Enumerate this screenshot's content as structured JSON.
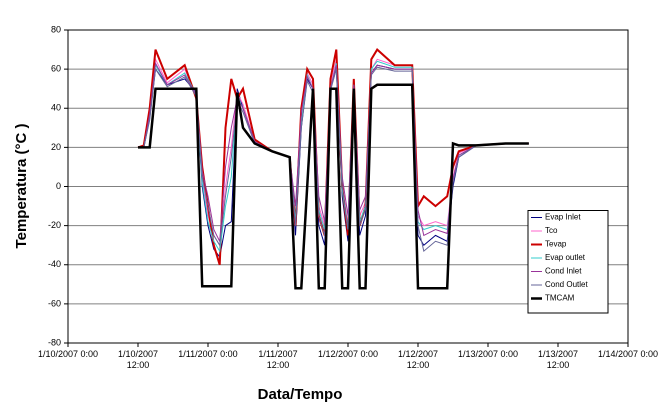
{
  "chart_data": {
    "type": "line",
    "y_label": "Temperatura (°C )",
    "x_label": "Data/Tempo",
    "xlim": [
      "1/10/2007 0:00",
      "1/14/2007 0:00"
    ],
    "xticks": [
      {
        "value": "1/10/2007 0:00",
        "label": "1/10/2007 0:00"
      },
      {
        "value": "1/10/2007 12:00",
        "label": "1/10/2007\n12:00"
      },
      {
        "value": "1/11/2007 0:00",
        "label": "1/11/2007 0:00"
      },
      {
        "value": "1/11/2007 12:00",
        "label": "1/11/2007\n12:00"
      },
      {
        "value": "1/12/2007 0:00",
        "label": "1/12/2007 0:00"
      },
      {
        "value": "1/12/2007 12:00",
        "label": "1/12/2007\n12:00"
      },
      {
        "value": "1/13/2007 0:00",
        "label": "1/13/2007 0:00"
      },
      {
        "value": "1/13/2007 12:00",
        "label": "1/13/2007\n12:00"
      },
      {
        "value": "1/14/2007 0:00",
        "label": "1/14/2007 0:00"
      }
    ],
    "ylim": [
      -80,
      80
    ],
    "yticks": [
      -80,
      -60,
      -40,
      -20,
      0,
      20,
      40,
      60,
      80
    ],
    "grid": true,
    "legend": "lower right",
    "x": [
      "1/10/2007 12:00",
      "1/10/2007 13:00",
      "1/10/2007 14:00",
      "1/10/2007 15:00",
      "1/10/2007 17:00",
      "1/10/2007 20:00",
      "1/10/2007 22:00",
      "1/10/2007 23:00",
      "1/11/2007 0:00",
      "1/11/2007 1:00",
      "1/11/2007 2:00",
      "1/11/2007 3:00",
      "1/11/2007 4:00",
      "1/11/2007 5:00",
      "1/11/2007 6:00",
      "1/11/2007 8:00",
      "1/11/2007 11:00",
      "1/11/2007 14:00",
      "1/11/2007 15:00",
      "1/11/2007 16:00",
      "1/11/2007 17:00",
      "1/11/2007 18:00",
      "1/11/2007 19:00",
      "1/11/2007 20:00",
      "1/11/2007 21:00",
      "1/11/2007 22:00",
      "1/11/2007 23:00",
      "1/12/2007 0:00",
      "1/12/2007 1:00",
      "1/12/2007 2:00",
      "1/12/2007 3:00",
      "1/12/2007 4:00",
      "1/12/2007 5:00",
      "1/12/2007 8:00",
      "1/12/2007 11:00",
      "1/12/2007 12:00",
      "1/12/2007 13:00",
      "1/12/2007 15:00",
      "1/12/2007 17:00",
      "1/12/2007 18:00",
      "1/12/2007 19:00",
      "1/12/2007 22:00",
      "1/13/2007 3:00",
      "1/13/2007 7:00"
    ],
    "series": [
      {
        "name": "Evap Inlet",
        "color": "#000080",
        "width": 1,
        "values": [
          20,
          20,
          35,
          60,
          52,
          55,
          48,
          0,
          -20,
          -32,
          -36,
          -20,
          -18,
          50,
          40,
          23,
          18,
          15,
          -25,
          30,
          55,
          50,
          -20,
          -30,
          50,
          60,
          -5,
          -28,
          52,
          -25,
          -15,
          58,
          62,
          60,
          60,
          -25,
          -30,
          -25,
          -28,
          0,
          15,
          21,
          22,
          22
        ]
      },
      {
        "name": "Tco",
        "color": "#ff66cc",
        "width": 1,
        "values": [
          20,
          20,
          38,
          65,
          53,
          60,
          46,
          5,
          -15,
          -25,
          -30,
          0,
          20,
          48,
          42,
          23,
          18,
          15,
          -15,
          35,
          58,
          52,
          -10,
          -20,
          52,
          65,
          0,
          -20,
          53,
          -15,
          -8,
          60,
          65,
          62,
          62,
          -15,
          -20,
          -18,
          -20,
          5,
          17,
          21,
          22,
          22
        ]
      },
      {
        "name": "Tevap",
        "color": "#cc0000",
        "width": 2,
        "values": [
          20,
          21,
          40,
          70,
          55,
          62,
          45,
          10,
          -10,
          -30,
          -40,
          30,
          55,
          45,
          50,
          24,
          18,
          15,
          -20,
          40,
          60,
          55,
          -15,
          -25,
          55,
          70,
          0,
          -25,
          55,
          -20,
          -10,
          65,
          70,
          62,
          62,
          -10,
          -5,
          -10,
          -5,
          10,
          18,
          21,
          22,
          22
        ]
      },
      {
        "name": "Evap outlet",
        "color": "#33cccc",
        "width": 1,
        "values": [
          20,
          20,
          36,
          62,
          52,
          58,
          47,
          2,
          -18,
          -28,
          -33,
          -10,
          5,
          46,
          40,
          23,
          18,
          15,
          -18,
          32,
          57,
          50,
          -12,
          -22,
          50,
          63,
          -2,
          -22,
          52,
          -18,
          -10,
          60,
          64,
          61,
          61,
          -18,
          -22,
          -20,
          -22,
          3,
          16,
          21,
          22,
          22
        ]
      },
      {
        "name": "Cond Inlet",
        "color": "#993399",
        "width": 1,
        "values": [
          20,
          20,
          37,
          63,
          52,
          57,
          47,
          8,
          -5,
          -22,
          -28,
          10,
          30,
          45,
          40,
          23,
          18,
          15,
          -10,
          38,
          56,
          50,
          -5,
          -18,
          50,
          62,
          5,
          -15,
          52,
          -12,
          -5,
          58,
          62,
          60,
          60,
          -12,
          -25,
          -22,
          -24,
          4,
          16,
          21,
          22,
          22
        ]
      },
      {
        "name": "Cond Outlet",
        "color": "#666699",
        "width": 1,
        "values": [
          20,
          20,
          34,
          60,
          51,
          56,
          46,
          5,
          -10,
          -25,
          -30,
          -5,
          15,
          44,
          38,
          22,
          18,
          15,
          -20,
          30,
          54,
          48,
          -15,
          -25,
          49,
          60,
          0,
          -22,
          50,
          -20,
          -12,
          57,
          61,
          59,
          59,
          -20,
          -33,
          -28,
          -30,
          2,
          15,
          21,
          22,
          22
        ]
      },
      {
        "name": "TMCAM",
        "color": "#000000",
        "width": 2.5,
        "values": [
          20,
          20,
          20,
          50,
          50,
          50,
          50,
          -51,
          -51,
          -51,
          -51,
          -51,
          -51,
          48,
          30,
          22,
          18,
          15,
          -52,
          -52,
          0,
          50,
          -52,
          -52,
          50,
          50,
          -52,
          -52,
          50,
          -52,
          -52,
          50,
          52,
          52,
          52,
          -52,
          -52,
          -52,
          -52,
          22,
          21,
          21,
          22,
          22
        ]
      }
    ]
  }
}
